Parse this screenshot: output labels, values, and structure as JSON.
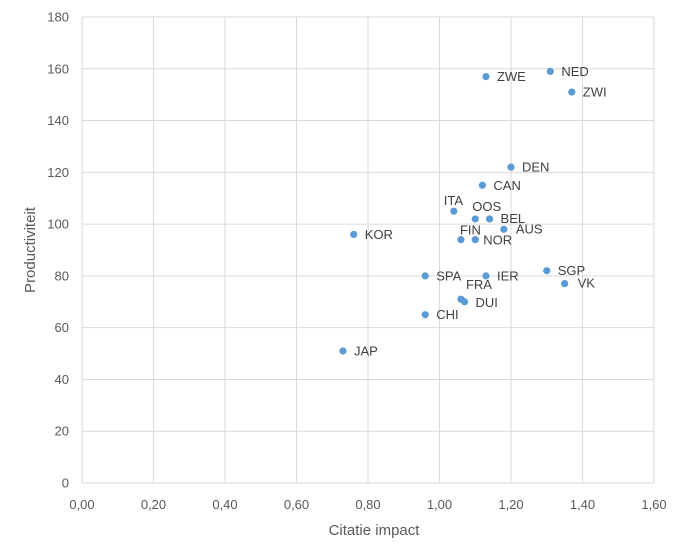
{
  "chart_data": {
    "type": "scatter",
    "title": "",
    "xlabel": "Citatie impact",
    "ylabel": "Productiviteit",
    "xlim": [
      0,
      1.6
    ],
    "ylim": [
      0,
      180
    ],
    "x_ticks": [
      "0,00",
      "0,20",
      "0,40",
      "0,60",
      "0,80",
      "1,00",
      "1,20",
      "1,40",
      "1,60"
    ],
    "y_ticks": [
      "0",
      "20",
      "40",
      "60",
      "80",
      "100",
      "120",
      "140",
      "160",
      "180"
    ],
    "grid": true,
    "legend": "none",
    "marker_color": "#5b9bd5",
    "points": [
      {
        "label": "NED",
        "x": 1.31,
        "y": 159
      },
      {
        "label": "ZWE",
        "x": 1.13,
        "y": 157
      },
      {
        "label": "ZWI",
        "x": 1.37,
        "y": 151
      },
      {
        "label": "DEN",
        "x": 1.2,
        "y": 122
      },
      {
        "label": "CAN",
        "x": 1.12,
        "y": 115
      },
      {
        "label": "ITA",
        "x": 1.04,
        "y": 105
      },
      {
        "label": "OOS",
        "x": 1.1,
        "y": 102
      },
      {
        "label": "BEL",
        "x": 1.14,
        "y": 102
      },
      {
        "label": "AUS",
        "x": 1.18,
        "y": 98
      },
      {
        "label": "KOR",
        "x": 0.76,
        "y": 96
      },
      {
        "label": "FIN",
        "x": 1.06,
        "y": 94
      },
      {
        "label": "NOR",
        "x": 1.1,
        "y": 94
      },
      {
        "label": "SGP",
        "x": 1.3,
        "y": 82
      },
      {
        "label": "SPA",
        "x": 0.96,
        "y": 80
      },
      {
        "label": "IER",
        "x": 1.13,
        "y": 80
      },
      {
        "label": "VK",
        "x": 1.35,
        "y": 77
      },
      {
        "label": "FRA",
        "x": 1.06,
        "y": 71
      },
      {
        "label": "DUI",
        "x": 1.07,
        "y": 70
      },
      {
        "label": "CHI",
        "x": 0.96,
        "y": 65
      },
      {
        "label": "JAP",
        "x": 0.73,
        "y": 51
      }
    ]
  }
}
